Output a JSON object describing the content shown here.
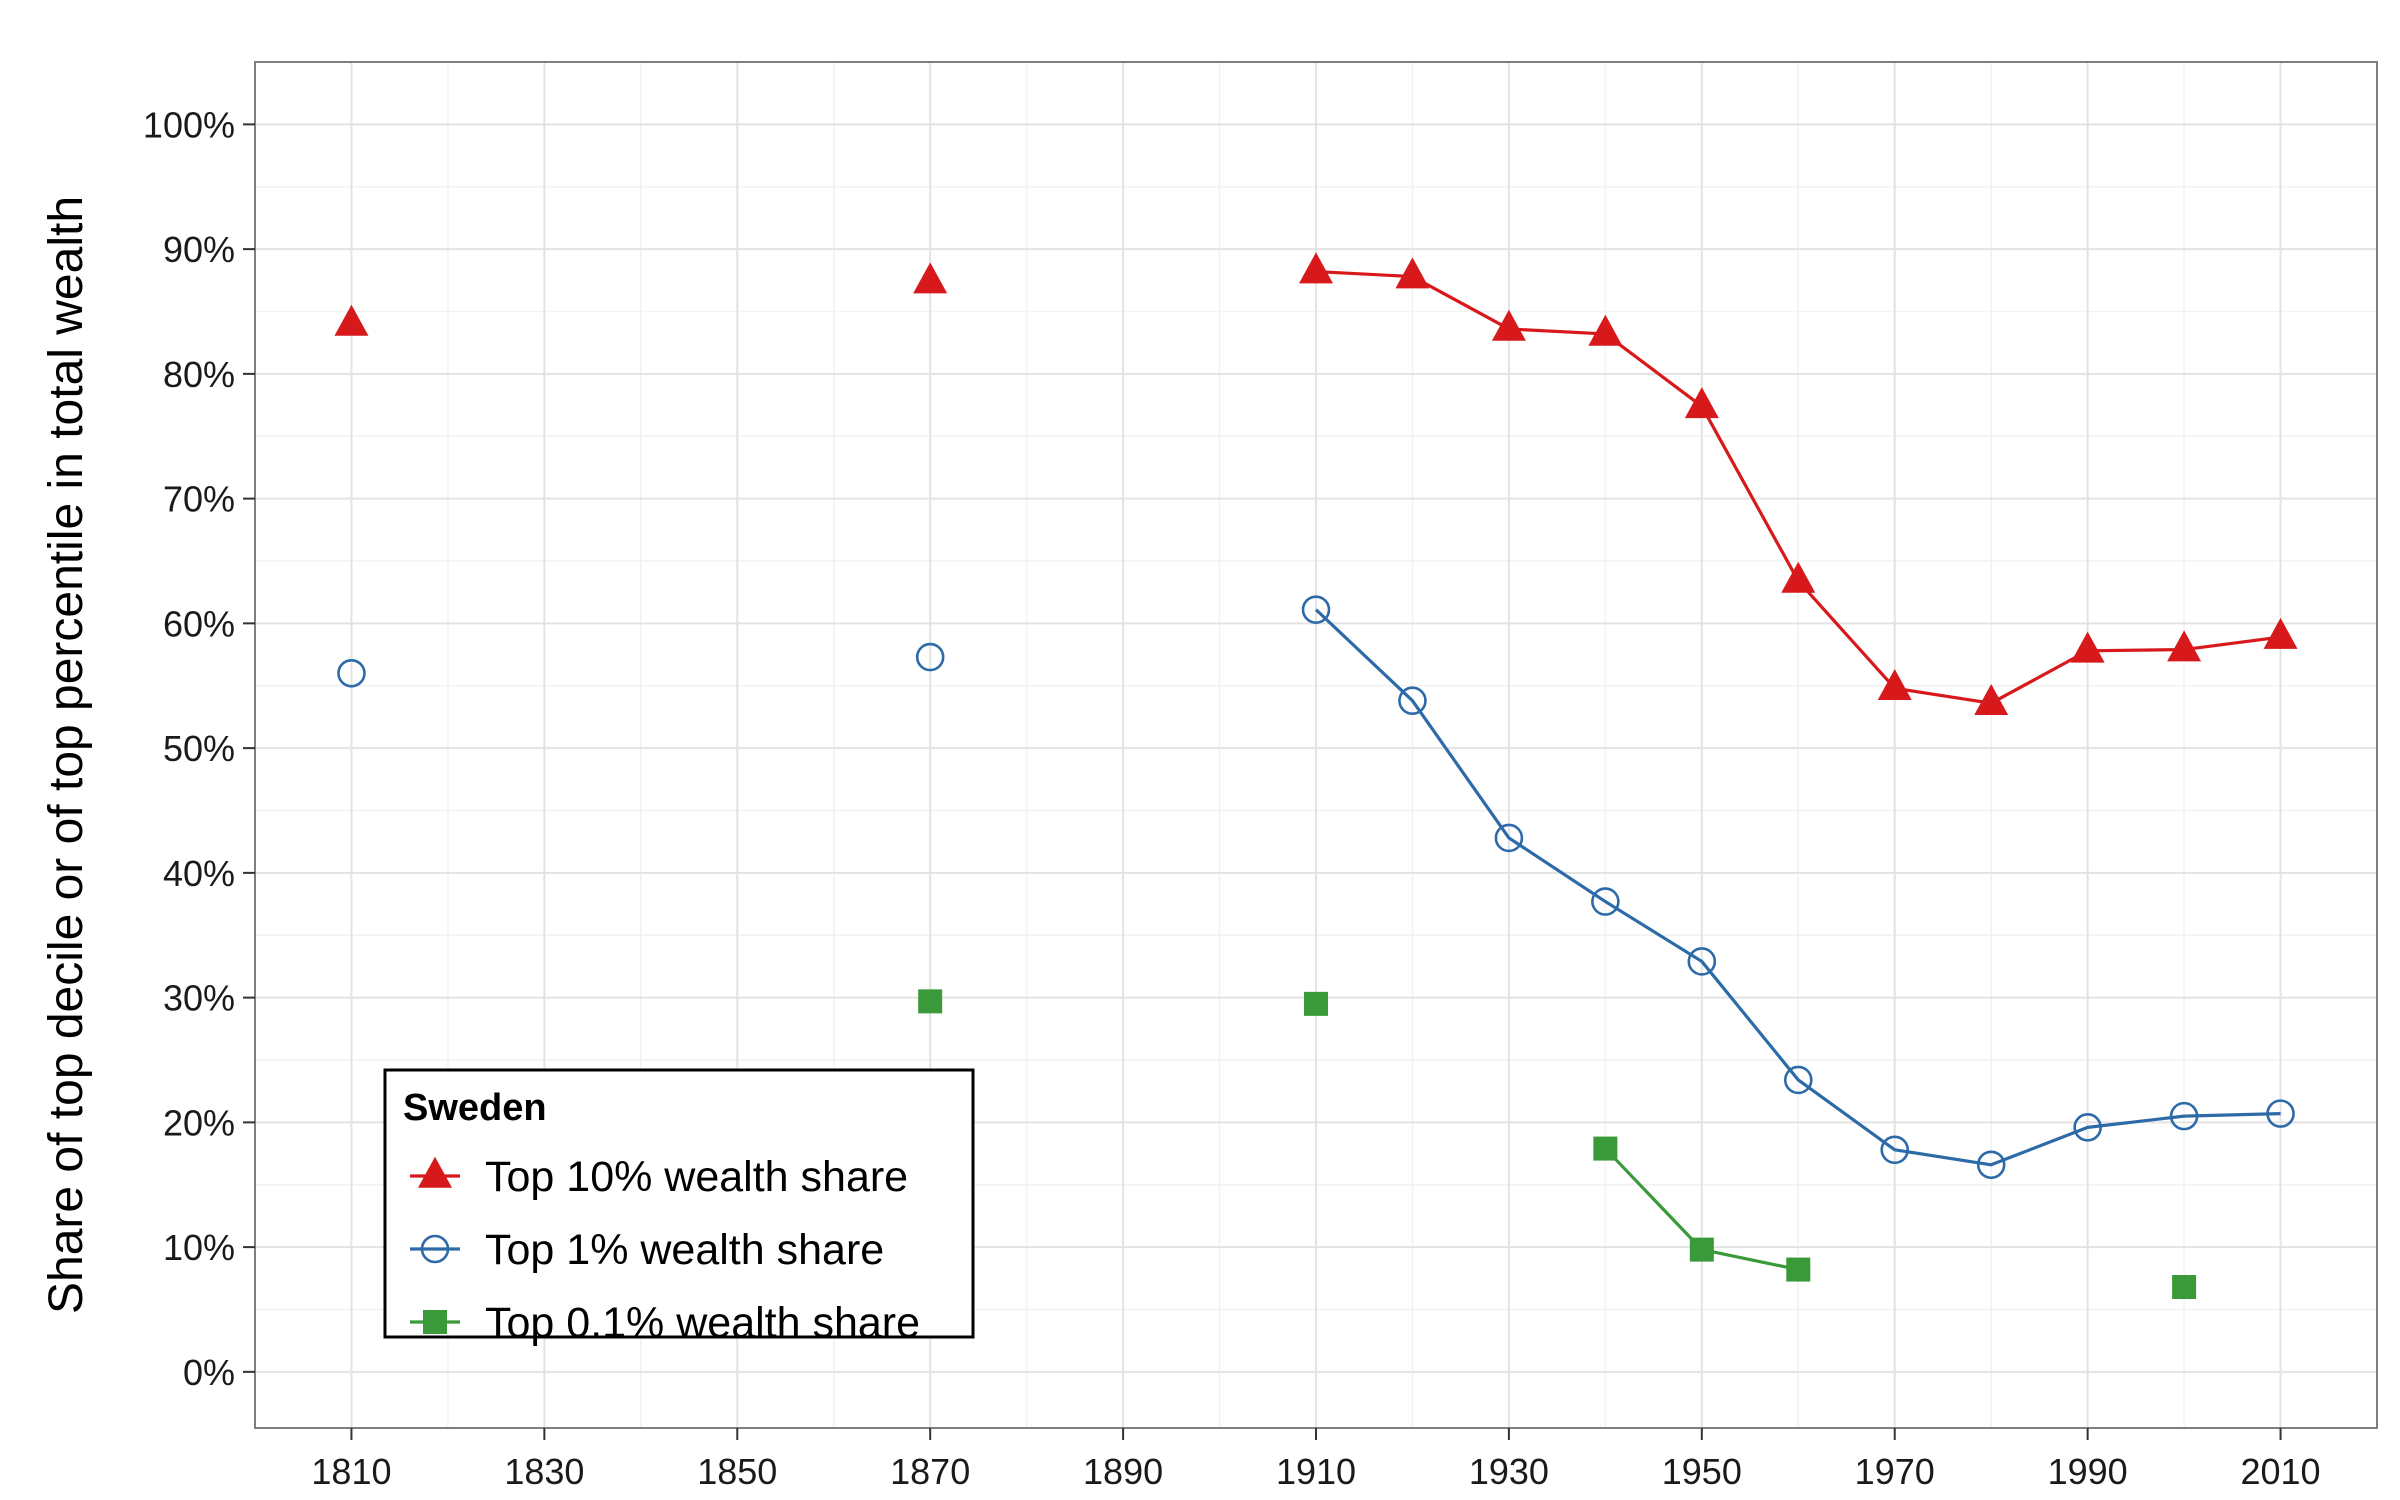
{
  "chart_data": {
    "type": "line",
    "title": "",
    "xlabel": "",
    "ylabel": "Share of top decile or of top percentile in total wealth",
    "x_ticks": [
      1810,
      1830,
      1850,
      1870,
      1890,
      1910,
      1930,
      1950,
      1970,
      1990,
      2010
    ],
    "y_ticks": [
      0,
      10,
      20,
      30,
      40,
      50,
      60,
      70,
      80,
      90,
      100
    ],
    "y_tick_labels": [
      "0%",
      "10%",
      "20%",
      "30%",
      "40%",
      "50%",
      "60%",
      "70%",
      "80%",
      "90%",
      "100%"
    ],
    "xlim": [
      1800,
      2020
    ],
    "ylim": [
      -4.5,
      105
    ],
    "grid": true,
    "legend": {
      "title": "Sweden",
      "position": "bottom-left"
    },
    "series": [
      {
        "name": "Top 10% wealth share",
        "color": "#d7191c",
        "marker": "triangle",
        "points": [
          {
            "x": 1810,
            "y": 84.0
          },
          {
            "x": 1870,
            "y": 87.4
          },
          {
            "x": 1910,
            "y": 88.2
          },
          {
            "x": 1920,
            "y": 87.8
          },
          {
            "x": 1930,
            "y": 83.6
          },
          {
            "x": 1940,
            "y": 83.2
          },
          {
            "x": 1950,
            "y": 77.4
          },
          {
            "x": 1960,
            "y": 63.4
          },
          {
            "x": 1970,
            "y": 54.8
          },
          {
            "x": 1980,
            "y": 53.6
          },
          {
            "x": 1990,
            "y": 57.8
          },
          {
            "x": 2000,
            "y": 57.9
          },
          {
            "x": 2010,
            "y": 58.9
          }
        ],
        "segments": [
          [
            2,
            12
          ]
        ]
      },
      {
        "name": "Top 1% wealth share",
        "color": "#2c6aa8",
        "marker": "circle-open",
        "points": [
          {
            "x": 1810,
            "y": 56.0
          },
          {
            "x": 1870,
            "y": 57.3
          },
          {
            "x": 1910,
            "y": 61.1
          },
          {
            "x": 1920,
            "y": 53.8
          },
          {
            "x": 1930,
            "y": 42.8
          },
          {
            "x": 1940,
            "y": 37.7
          },
          {
            "x": 1950,
            "y": 32.9
          },
          {
            "x": 1960,
            "y": 23.4
          },
          {
            "x": 1970,
            "y": 17.8
          },
          {
            "x": 1980,
            "y": 16.6
          },
          {
            "x": 1990,
            "y": 19.6
          },
          {
            "x": 2000,
            "y": 20.5
          },
          {
            "x": 2010,
            "y": 20.7
          }
        ],
        "segments": [
          [
            2,
            12
          ]
        ]
      },
      {
        "name": "Top 0.1% wealth share",
        "color": "#3a9a3a",
        "marker": "square",
        "points": [
          {
            "x": 1870,
            "y": 29.7
          },
          {
            "x": 1910,
            "y": 29.5
          },
          {
            "x": 1940,
            "y": 17.9
          },
          {
            "x": 1950,
            "y": 9.8
          },
          {
            "x": 1960,
            "y": 8.2
          },
          {
            "x": 2000,
            "y": 6.8
          }
        ],
        "segments": [
          [
            2,
            4
          ]
        ]
      }
    ]
  }
}
